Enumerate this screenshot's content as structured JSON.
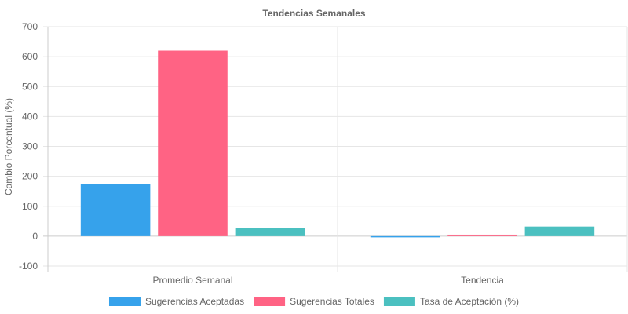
{
  "chart_data": {
    "type": "bar",
    "title": "Tendencias Semanales",
    "xlabel": "",
    "ylabel": "Cambio Porcentual (%)",
    "categories": [
      "Promedio Semanal",
      "Tendencia"
    ],
    "ylim": [
      -100,
      700
    ],
    "yticks": [
      "700",
      "600",
      "500",
      "400",
      "300",
      "200",
      "100",
      "0",
      "-100"
    ],
    "grid": true,
    "legend_position": "bottom",
    "series": [
      {
        "name": "Sugerencias Aceptadas",
        "color": "#36A2EB",
        "values": [
          175,
          -3
        ]
      },
      {
        "name": "Sugerencias Totales",
        "color": "#FF6384",
        "values": [
          620,
          5
        ]
      },
      {
        "name": "Tasa de Aceptación (%)",
        "color": "#4BC0C0",
        "values": [
          28,
          32
        ]
      }
    ]
  }
}
